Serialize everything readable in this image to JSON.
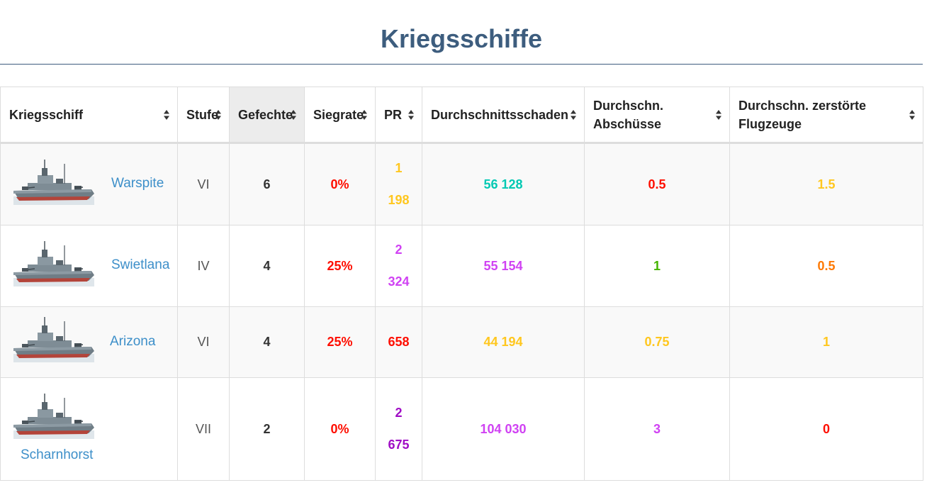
{
  "title": "Kriegsschiffe",
  "table": {
    "headers": [
      {
        "label": "Kriegsschiff"
      },
      {
        "label": "Stufe"
      },
      {
        "label": "Gefechte"
      },
      {
        "label": "Siegrate"
      },
      {
        "label": "PR"
      },
      {
        "label": "Durchschnittsschaden"
      },
      {
        "label": "Durchschn. Abschüsse"
      },
      {
        "label": "Durchschn. zerstörte Flugzeuge"
      }
    ],
    "rows": [
      {
        "ship": "Warspite",
        "tier": "VI",
        "battles": "6",
        "winrate": "0%",
        "pr_line1": "1",
        "pr_line2": "198",
        "damage": "56 128",
        "kills": "0.5",
        "planes": "1.5"
      },
      {
        "ship": "Swietlana",
        "tier": "IV",
        "battles": "4",
        "winrate": "25%",
        "pr_line1": "2",
        "pr_line2": "324",
        "damage": "55 154",
        "kills": "1",
        "planes": "0.5"
      },
      {
        "ship": "Arizona",
        "tier": "VI",
        "battles": "4",
        "winrate": "25%",
        "pr_line1": "658",
        "pr_line2": "",
        "damage": "44 194",
        "kills": "0.75",
        "planes": "1"
      },
      {
        "ship": "Scharnhorst",
        "tier": "VII",
        "battles": "2",
        "winrate": "0%",
        "pr_line1": "2",
        "pr_line2": "675",
        "damage": "104 030",
        "kills": "3",
        "planes": "0"
      }
    ]
  },
  "colors": {
    "title": "#3d5d7e",
    "link": "#3d8fc9",
    "red": "#fe0e00",
    "yellow": "#ffc71f",
    "teal": "#02c9b3",
    "magenta": "#d042f3",
    "purple": "#a00dc5",
    "green": "#44b300",
    "orange": "#fe7903"
  },
  "icons": {
    "sort": "sort-icon",
    "ship": "warship-image"
  }
}
